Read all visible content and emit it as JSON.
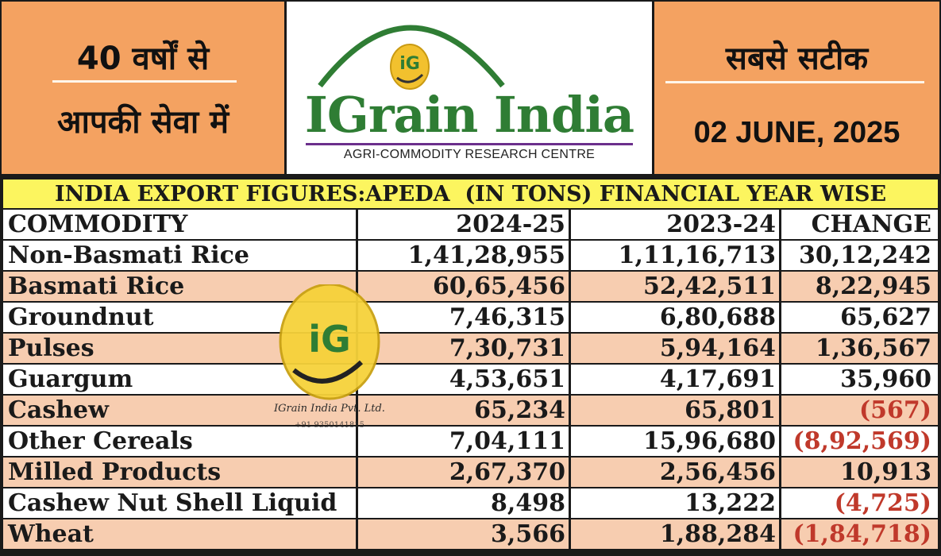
{
  "header": {
    "tagline_line1": "40 वर्षों से",
    "tagline_line2": "आपकी सेवा में",
    "logo_name": "IGrain India",
    "logo_subtitle": "AGRI-COMMODITY RESEARCH CENTRE",
    "logo_monogram": "iG",
    "slogan": "सबसे सटीक",
    "date": "02 JUNE, 2025"
  },
  "table": {
    "banner_prefix": "INDIA EXPORT FIGURES: ",
    "banner_highlight": "APEDA",
    "banner_suffix": "  (IN TONS) FINANCIAL YEAR WISE",
    "columns": [
      "COMMODITY",
      "2024-25",
      "2023-24",
      "CHANGE"
    ],
    "rows": [
      {
        "commodity": "Non-Basmati Rice",
        "fy2425": "1,41,28,955",
        "fy2324": "1,11,16,713",
        "change": "30,12,242",
        "negative": false
      },
      {
        "commodity": "Basmati Rice",
        "fy2425": "60,65,456",
        "fy2324": "52,42,511",
        "change": "8,22,945",
        "negative": false
      },
      {
        "commodity": "Groundnut",
        "fy2425": "7,46,315",
        "fy2324": "6,80,688",
        "change": "65,627",
        "negative": false
      },
      {
        "commodity": "Pulses",
        "fy2425": "7,30,731",
        "fy2324": "5,94,164",
        "change": "1,36,567",
        "negative": false
      },
      {
        "commodity": "Guargum",
        "fy2425": "4,53,651",
        "fy2324": "4,17,691",
        "change": "35,960",
        "negative": false
      },
      {
        "commodity": "Cashew",
        "fy2425": "65,234",
        "fy2324": "65,801",
        "change": "(567)",
        "negative": true
      },
      {
        "commodity": "Other Cereals",
        "fy2425": "7,04,111",
        "fy2324": "15,96,680",
        "change": "(8,92,569)",
        "negative": true
      },
      {
        "commodity": "Milled Products",
        "fy2425": "2,67,370",
        "fy2324": "2,56,456",
        "change": "10,913",
        "negative": false
      },
      {
        "commodity": "Cashew Nut Shell Liquid",
        "fy2425": "8,498",
        "fy2324": "13,222",
        "change": "(4,725)",
        "negative": true
      },
      {
        "commodity": "Wheat",
        "fy2425": "3,566",
        "fy2324": "1,88,284",
        "change": "(1,84,718)",
        "negative": true
      }
    ]
  },
  "watermark": {
    "monogram": "iG",
    "company": "IGrain India Pvt. Ltd.",
    "phone": "+91 9350141815"
  },
  "colors": {
    "orange_panel": "#f4a261",
    "banner_yellow": "#fcf55f",
    "row_peach": "#f7cdb0",
    "logo_green": "#2f7d34",
    "negative_red": "#c0392b"
  }
}
